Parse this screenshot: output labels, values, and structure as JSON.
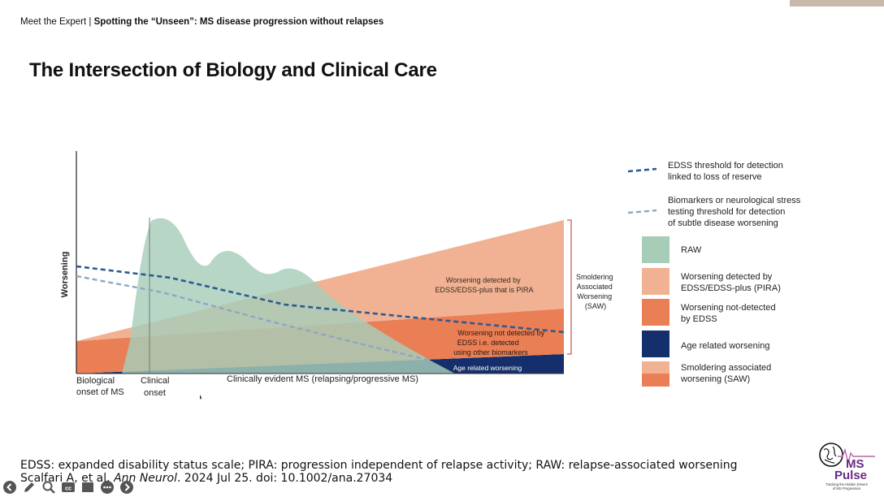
{
  "header": {
    "series": "Meet the Expert",
    "separator": "|",
    "session_title": "Spotting the “Unseen”: MS disease progression without relapses"
  },
  "slide": {
    "title": "The Intersection of Biology and Clinical Care"
  },
  "chart_data": {
    "type": "area",
    "ylabel": "Worsening",
    "x_labels": {
      "biological_onset": [
        "Biological",
        "onset of MS"
      ],
      "clinical_onset": [
        "Clinical",
        "onset"
      ],
      "clinically_evident": "Clinically evident MS (relapsing/progressive MS)"
    },
    "region_labels": {
      "pira": [
        "Worsening detected by",
        "EDSS/EDSS-plus that is PIRA"
      ],
      "not_detected": [
        "Worsening not detected by",
        "EDSS i.e. detected",
        "using other biomarkers"
      ],
      "age": "Age related worsening",
      "saw_bracket": [
        "Smoldering",
        "Associated",
        "Worsening",
        "(SAW)"
      ]
    },
    "legend": [
      {
        "kind": "dash",
        "color": "#2c5a92",
        "label": [
          "EDSS threshold for detection",
          "linked to loss of reserve"
        ]
      },
      {
        "kind": "dash",
        "color": "#8ea6c2",
        "label": [
          "Biomarkers or neurological stress",
          "testing threshold for detection",
          "of subtle disease worsening"
        ]
      },
      {
        "kind": "swatch",
        "color": "#a7cdb9",
        "label": [
          "RAW"
        ]
      },
      {
        "kind": "swatch",
        "color": "#f1b293",
        "label": [
          "Worsening detected by",
          "EDSS/EDSS-plus (PIRA)"
        ]
      },
      {
        "kind": "swatch",
        "color": "#ea7e55",
        "label": [
          "Worsening not-detected",
          "by EDSS"
        ]
      },
      {
        "kind": "swatch",
        "color": "#142f6b",
        "label": [
          "Age related worsening"
        ]
      },
      {
        "kind": "split",
        "colors": [
          "#f1b293",
          "#ea7e55"
        ],
        "label": [
          "Smoldering associated",
          "worsening (SAW)"
        ]
      }
    ],
    "colors": {
      "raw": "#a7cdb9",
      "pira": "#f1b293",
      "not_detected": "#ea7e55",
      "age": "#142f6b",
      "edss_line": "#2c5a92",
      "biomarker_line": "#8ea6c2"
    }
  },
  "footnotes": {
    "abbreviations": "EDSS: expanded disability status scale; PIRA: progression independent of relapse activity; RAW: relapse-associated worsening",
    "citation_authors": "Scalfari A, et al.",
    "citation_journal": "Ann Neurol",
    "citation_rest": ". 2024 Jul 25. doi: 10.1002/ana.27034"
  },
  "logo": {
    "name_top": "MS",
    "name_bottom": "Pulse",
    "tagline_1": "Tracking the Hidden Drivers",
    "tagline_2": "of MS Progression"
  },
  "controls": {
    "icons": [
      "back-icon",
      "pen-icon",
      "zoom-icon",
      "captions-icon",
      "screen-icon",
      "more-icon",
      "forward-icon"
    ]
  }
}
